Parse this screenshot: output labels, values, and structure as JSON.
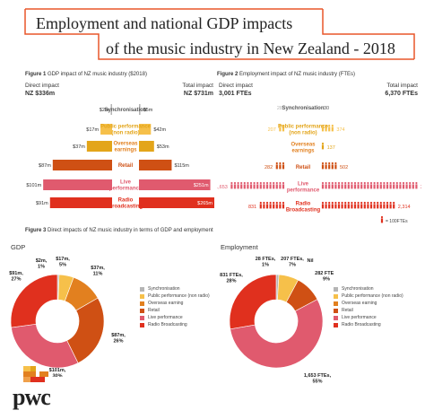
{
  "title": {
    "line1": "Employment and national GDP impacts",
    "line2": "of the music industry in New Zealand - 2018"
  },
  "colors": {
    "accent": "#e8562a",
    "pale": "#f6c04a",
    "gold": "#e3a51a",
    "orange": "#e2801f",
    "dark_orange": "#cf5014",
    "pink": "#e05a6e",
    "red": "#e0301e",
    "grey": "#b5b5b5"
  },
  "captions": {
    "fig1_label": "Figure 1",
    "fig1_text": "GDP impact of NZ music industry ($2018)",
    "fig2_label": "Figure 2",
    "fig2_text": "Employment impact of NZ music industry (FTEs)",
    "fig3_label": "Figure 3",
    "fig3_text": "Direct impacts of NZ music industry in terms of GDP and employment"
  },
  "chart_data": [
    {
      "type": "bar",
      "id": "fig1",
      "left_header": "Direct impact",
      "left_total": "NZ $336m",
      "right_header": "Total impact",
      "right_total": "NZ $731m",
      "categories": [
        "Synchronisation",
        "Public performance (non radio)",
        "Overseas earnings",
        "Retail",
        "Live performance",
        "Radio Broadcasting"
      ],
      "series": [
        {
          "name": "Direct impact",
          "values": [
            2,
            17,
            37,
            87,
            101,
            91
          ],
          "labels": [
            "$2m",
            "$17m",
            "$37m",
            "$87m",
            "$101m",
            "$91m"
          ]
        },
        {
          "name": "Total impact",
          "values": [
            5,
            42,
            53,
            115,
            251,
            265
          ],
          "labels": [
            "$5m",
            "$42m",
            "$53m",
            "$115m",
            "$251m",
            "$265m"
          ]
        }
      ]
    },
    {
      "type": "bar",
      "id": "fig2",
      "left_header": "Direct impact",
      "left_total": "3,001 FTEs",
      "right_header": "Total impact",
      "right_total": "6,370 FTEs",
      "icon_note": "= 100FTEs",
      "categories": [
        "Synchronisation",
        "Public performance (non radio)",
        "Overseas earnings",
        "Retail",
        "Live performance",
        "Radio Broadcasting"
      ],
      "series": [
        {
          "name": "Direct impact",
          "values": [
            28,
            207,
            0,
            282,
            1653,
            831
          ],
          "labels": [
            "28",
            "207",
            "0",
            "282",
            "1,653",
            "831"
          ]
        },
        {
          "name": "Total impact",
          "values": [
            30,
            374,
            137,
            502,
            2992,
            2314
          ],
          "labels": [
            "30",
            "374",
            "137",
            "502",
            "2,992",
            "2,314"
          ]
        }
      ]
    },
    {
      "type": "pie",
      "id": "gdp",
      "title": "GDP",
      "categories": [
        "Synchronisation",
        "Public performance (non radio)",
        "Overseas earning",
        "Retail",
        "Live performance",
        "Radio Broadcasting"
      ],
      "values": [
        2,
        17,
        37,
        87,
        101,
        91
      ],
      "percents": [
        1,
        5,
        11,
        26,
        30,
        27
      ],
      "labels": [
        "$2m, 1%",
        "$17m, 5%",
        "$37m, 11%",
        "$87m, 26%",
        "$101m, 30%",
        "$91m, 27%"
      ]
    },
    {
      "type": "pie",
      "id": "emp",
      "title": "Employment",
      "categories": [
        "Synchronisation",
        "Public performance (non radio)",
        "Overseas earning",
        "Retail",
        "Live performance",
        "Radio Broadcasting"
      ],
      "values": [
        28,
        207,
        0,
        282,
        1653,
        831
      ],
      "percents": [
        1,
        7,
        0,
        9,
        55,
        28
      ],
      "labels": [
        "28 FTEs, 1%",
        "207 FTEs, 7%",
        "Nil",
        "282 FTEs, 9%",
        "1,653 FTEs, 55%",
        "831 FTEs, 28%"
      ]
    }
  ],
  "legend": {
    "items": [
      "Synchronisation",
      "Public performance (non radio)",
      "Overseas earning",
      "Retail",
      "Live performance",
      "Radio Broadcasting"
    ]
  },
  "logo": {
    "text": "pwc"
  }
}
